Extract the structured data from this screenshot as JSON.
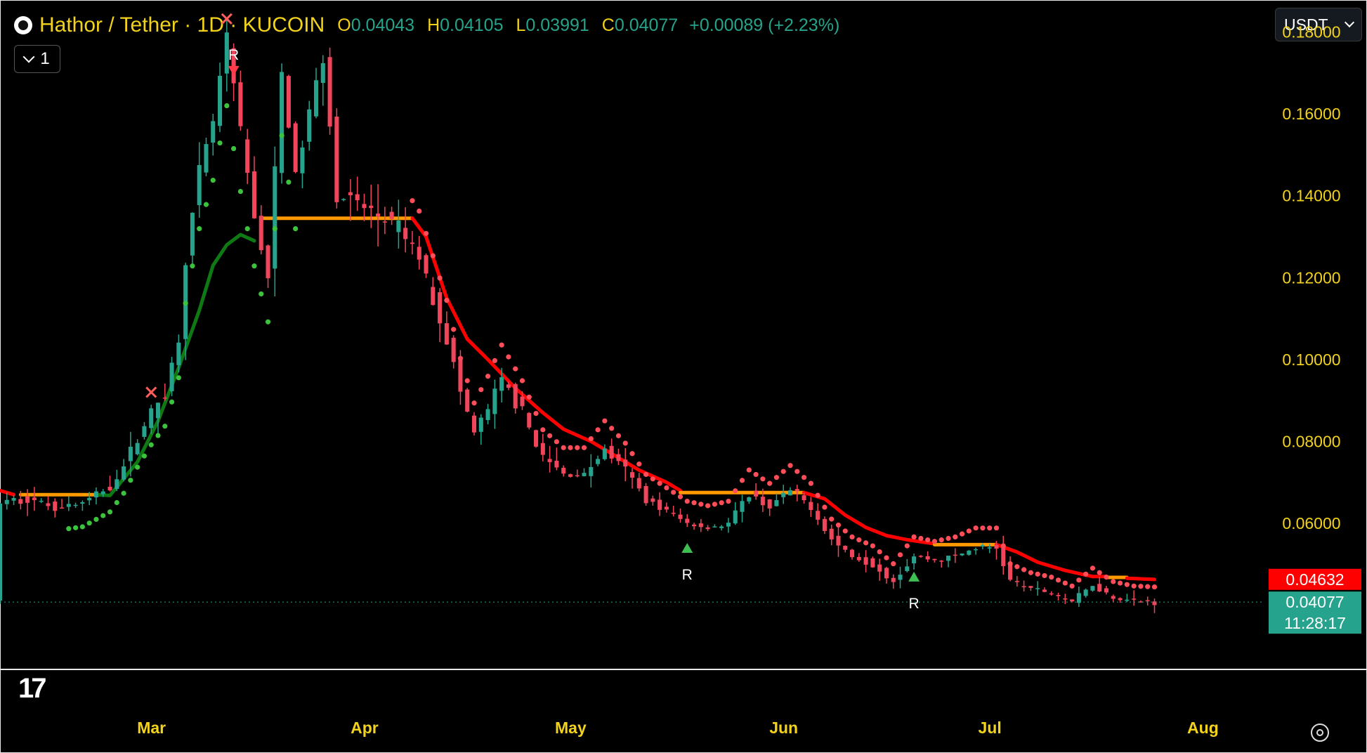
{
  "header": {
    "title": "Hathor / Tether · 1D · KUCOIN",
    "ohlc": [
      {
        "k": "O",
        "v": "0.04043"
      },
      {
        "k": "H",
        "v": "0.04105"
      },
      {
        "k": "L",
        "v": "0.03991"
      },
      {
        "k": "C",
        "v": "0.04077"
      }
    ],
    "change": "+0.00089 (+2.23%)",
    "collapse_count": "1",
    "currency": "USDT"
  },
  "colors": {
    "up": "#26a38c",
    "down": "#f0455a",
    "ma_green": "#0f7a14",
    "ma_red": "#ff0000",
    "ma_orange": "#ff9900",
    "axis_text": "#f2d21b",
    "dots_green": "#3cc23c",
    "dots_red": "#ff4d5a"
  },
  "chart_data": {
    "type": "candlestick",
    "x_range": [
      "2024-02-10",
      "2024-08-12"
    ],
    "ylim": [
      0.0245,
      0.1878
    ],
    "y_ticks": [
      "0.18000",
      "0.16000",
      "0.14000",
      "0.12000",
      "0.10000",
      "0.08000",
      "0.06000"
    ],
    "x_ticks": [
      {
        "label": "Mar",
        "date": "2024-03-01"
      },
      {
        "label": "Apr",
        "date": "2024-04-01"
      },
      {
        "label": "May",
        "date": "2024-05-01"
      },
      {
        "label": "Jun",
        "date": "2024-06-01"
      },
      {
        "label": "Jul",
        "date": "2024-07-01"
      },
      {
        "label": "Aug",
        "date": "2024-08-01"
      }
    ],
    "close_path": [
      [
        "2024-02-10",
        0.065
      ],
      [
        "2024-02-14",
        0.066
      ],
      [
        "2024-02-18",
        0.064
      ],
      [
        "2024-02-22",
        0.065
      ],
      [
        "2024-02-26",
        0.069
      ],
      [
        "2024-02-28",
        0.074
      ],
      [
        "2024-03-01",
        0.081
      ],
      [
        "2024-03-03",
        0.087
      ],
      [
        "2024-03-05",
        0.092
      ],
      [
        "2024-03-07",
        0.105
      ],
      [
        "2024-03-08",
        0.125
      ],
      [
        "2024-03-10",
        0.145
      ],
      [
        "2024-03-12",
        0.158
      ],
      [
        "2024-03-14",
        0.178
      ],
      [
        "2024-03-16",
        0.155
      ],
      [
        "2024-03-18",
        0.135
      ],
      [
        "2024-03-20",
        0.12
      ],
      [
        "2024-03-22",
        0.17
      ],
      [
        "2024-03-24",
        0.145
      ],
      [
        "2024-03-26",
        0.16
      ],
      [
        "2024-03-28",
        0.175
      ],
      [
        "2024-03-30",
        0.14
      ],
      [
        "2024-04-02",
        0.138
      ],
      [
        "2024-04-05",
        0.135
      ],
      [
        "2024-04-08",
        0.132
      ],
      [
        "2024-04-11",
        0.125
      ],
      [
        "2024-04-13",
        0.115
      ],
      [
        "2024-04-15",
        0.105
      ],
      [
        "2024-04-17",
        0.092
      ],
      [
        "2024-04-19",
        0.082
      ],
      [
        "2024-04-21",
        0.088
      ],
      [
        "2024-04-23",
        0.095
      ],
      [
        "2024-04-26",
        0.087
      ],
      [
        "2024-04-29",
        0.076
      ],
      [
        "2024-05-02",
        0.072
      ],
      [
        "2024-05-05",
        0.072
      ],
      [
        "2024-05-08",
        0.078
      ],
      [
        "2024-05-11",
        0.073
      ],
      [
        "2024-05-14",
        0.066
      ],
      [
        "2024-05-17",
        0.063
      ],
      [
        "2024-05-20",
        0.06
      ],
      [
        "2024-05-23",
        0.059
      ],
      [
        "2024-05-26",
        0.06
      ],
      [
        "2024-05-29",
        0.067
      ],
      [
        "2024-06-01",
        0.064
      ],
      [
        "2024-06-04",
        0.068
      ],
      [
        "2024-06-07",
        0.064
      ],
      [
        "2024-06-10",
        0.056
      ],
      [
        "2024-06-13",
        0.052
      ],
      [
        "2024-06-16",
        0.05
      ],
      [
        "2024-06-19",
        0.046
      ],
      [
        "2024-06-22",
        0.052
      ],
      [
        "2024-06-25",
        0.051
      ],
      [
        "2024-06-28",
        0.052
      ],
      [
        "2024-07-01",
        0.054
      ],
      [
        "2024-07-04",
        0.054
      ],
      [
        "2024-07-06",
        0.046
      ],
      [
        "2024-07-09",
        0.044
      ],
      [
        "2024-07-12",
        0.043
      ],
      [
        "2024-07-15",
        0.041
      ],
      [
        "2024-07-18",
        0.045
      ],
      [
        "2024-07-21",
        0.042
      ],
      [
        "2024-07-24",
        0.041
      ],
      [
        "2024-07-27",
        0.0408
      ]
    ],
    "ma_trend": [
      {
        "color": "red",
        "points": [
          [
            "2024-02-10",
            0.068
          ],
          [
            "2024-02-12",
            0.067
          ]
        ]
      },
      {
        "color": "orange",
        "points": [
          [
            "2024-02-13",
            0.067
          ],
          [
            "2024-02-24",
            0.067
          ]
        ]
      },
      {
        "color": "green",
        "points": [
          [
            "2024-02-24",
            0.067
          ],
          [
            "2024-02-26",
            0.0668
          ],
          [
            "2024-03-01",
            0.075
          ],
          [
            "2024-03-04",
            0.085
          ],
          [
            "2024-03-07",
            0.098
          ],
          [
            "2024-03-10",
            0.112
          ],
          [
            "2024-03-12",
            0.123
          ],
          [
            "2024-03-14",
            0.128
          ],
          [
            "2024-03-16",
            0.1305
          ],
          [
            "2024-03-18",
            0.129
          ]
        ]
      },
      {
        "color": "orange",
        "points": [
          [
            "2024-03-19",
            0.1345
          ],
          [
            "2024-04-10",
            0.1345
          ]
        ]
      },
      {
        "color": "red",
        "points": [
          [
            "2024-04-10",
            0.1345
          ],
          [
            "2024-04-12",
            0.13
          ],
          [
            "2024-04-15",
            0.115
          ],
          [
            "2024-04-18",
            0.105
          ],
          [
            "2024-04-21",
            0.1
          ],
          [
            "2024-04-25",
            0.093
          ],
          [
            "2024-04-29",
            0.087
          ],
          [
            "2024-05-02",
            0.083
          ],
          [
            "2024-05-06",
            0.08
          ],
          [
            "2024-05-09",
            0.077
          ],
          [
            "2024-05-13",
            0.073
          ],
          [
            "2024-05-17",
            0.07
          ],
          [
            "2024-05-19",
            0.068
          ]
        ]
      },
      {
        "color": "orange",
        "points": [
          [
            "2024-05-19",
            0.0675
          ],
          [
            "2024-06-06",
            0.0675
          ]
        ]
      },
      {
        "color": "red",
        "points": [
          [
            "2024-06-06",
            0.0675
          ],
          [
            "2024-06-09",
            0.066
          ],
          [
            "2024-06-12",
            0.062
          ],
          [
            "2024-06-15",
            0.059
          ],
          [
            "2024-06-18",
            0.057
          ],
          [
            "2024-06-21",
            0.056
          ],
          [
            "2024-06-25",
            0.055
          ]
        ]
      },
      {
        "color": "orange",
        "points": [
          [
            "2024-06-25",
            0.0548
          ],
          [
            "2024-07-04",
            0.0548
          ]
        ]
      },
      {
        "color": "red",
        "points": [
          [
            "2024-07-04",
            0.0548
          ],
          [
            "2024-07-07",
            0.053
          ],
          [
            "2024-07-10",
            0.0505
          ],
          [
            "2024-07-14",
            0.0485
          ],
          [
            "2024-07-18",
            0.047
          ],
          [
            "2024-07-20",
            0.047
          ]
        ]
      },
      {
        "color": "orange",
        "points": [
          [
            "2024-07-20",
            0.0468
          ],
          [
            "2024-07-23",
            0.0468
          ]
        ]
      },
      {
        "color": "red",
        "points": [
          [
            "2024-07-23",
            0.0466
          ],
          [
            "2024-07-27",
            0.0463
          ]
        ]
      }
    ],
    "dots_green": {
      "range": [
        "2024-02-20",
        "2024-03-24"
      ]
    },
    "dots_red": {
      "range": [
        "2024-04-10",
        "2024-07-27"
      ]
    },
    "markers": [
      {
        "type": "cross",
        "date": "2024-03-03",
        "price": 0.092
      },
      {
        "type": "cross",
        "date": "2024-03-14",
        "price": 0.1832
      },
      {
        "type": "triangle-down",
        "date": "2024-03-15",
        "price": 0.1705,
        "label": "R"
      },
      {
        "type": "triangle-up",
        "date": "2024-05-20",
        "price": 0.054,
        "label": "R"
      },
      {
        "type": "triangle-up",
        "date": "2024-06-22",
        "price": 0.047,
        "label": "R"
      }
    ],
    "price_labels": [
      {
        "value": "0.04632",
        "price": 0.04632,
        "color": "#ff0000"
      },
      {
        "value": "0.04077",
        "price": 0.04077,
        "color": "#26a38c",
        "sub": "11:28:17"
      }
    ],
    "last_price_line": 0.04077
  }
}
